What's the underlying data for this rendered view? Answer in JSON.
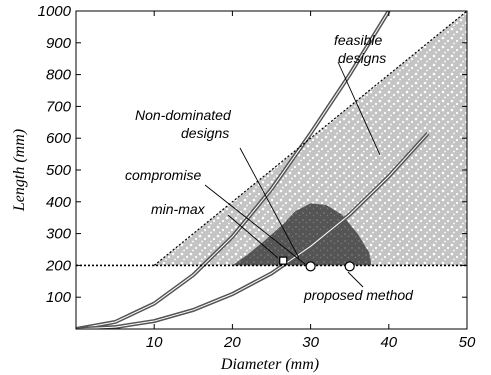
{
  "chart_data": {
    "type": "scatter",
    "title": "",
    "xlabel": "Diameter (mm)",
    "ylabel": "Length (mm)",
    "xlim": [
      0,
      50
    ],
    "ylim": [
      0,
      1000
    ],
    "x_ticks": [
      10,
      20,
      30,
      40,
      50
    ],
    "y_ticks": [
      100,
      200,
      300,
      400,
      500,
      600,
      700,
      800,
      900,
      1000
    ],
    "grid": false,
    "feasible_region": {
      "name": "feasible designs",
      "color": "#c8c8c8",
      "bounds": "L >= 200, L <= 20*D",
      "polygon": [
        [
          10,
          200
        ],
        [
          50,
          200
        ],
        [
          50,
          1000
        ]
      ]
    },
    "non_dominated_region": {
      "name": "Non-dominated designs",
      "color": "#555555",
      "outline": [
        [
          20,
          200
        ],
        [
          22,
          235
        ],
        [
          24,
          275
        ],
        [
          26.5,
          330
        ],
        [
          28,
          370
        ],
        [
          30,
          395
        ],
        [
          32,
          390
        ],
        [
          34,
          360
        ],
        [
          36,
          300
        ],
        [
          37.5,
          240
        ],
        [
          37.8,
          200
        ]
      ]
    },
    "constraint_lines": [
      {
        "type": "horizontal",
        "y": 200,
        "style": "dotted"
      },
      {
        "type": "diagonal",
        "from": [
          10,
          200
        ],
        "to": [
          50,
          1000
        ],
        "style": "dotted"
      }
    ],
    "curves": [
      {
        "x": [
          0,
          5,
          10,
          15,
          20,
          25,
          30,
          35,
          40
        ],
        "y": [
          0,
          22,
          80,
          170,
          290,
          440,
          615,
          800,
          1000
        ]
      },
      {
        "x": [
          0,
          5,
          10,
          15,
          20,
          25,
          30,
          35,
          40,
          45
        ],
        "y": [
          0,
          6,
          25,
          60,
          110,
          175,
          260,
          360,
          480,
          615
        ]
      }
    ],
    "points": [
      {
        "label": "min-max",
        "x": 26.5,
        "y": 215,
        "marker": "square"
      },
      {
        "label": "compromise",
        "x": 30,
        "y": 197,
        "marker": "circle"
      },
      {
        "label": "proposed method",
        "x": 35,
        "y": 197,
        "marker": "circle"
      }
    ],
    "annotations": {
      "feasible_line1": "feasible",
      "feasible_line2": "designs",
      "nondom_line1": "Non-dominated",
      "nondom_line2": "designs",
      "compromise": "compromise",
      "minmax": "min-max",
      "proposed": "proposed method"
    }
  }
}
